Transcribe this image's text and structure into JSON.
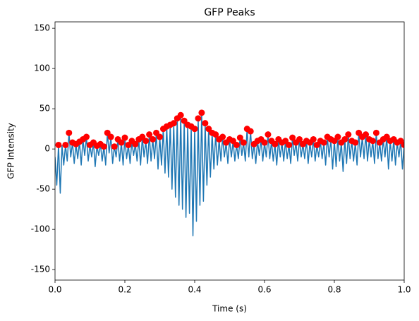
{
  "chart_data": {
    "type": "line",
    "title": "GFP Peaks",
    "x_label": "Time (s)",
    "y_label": "GFP Intensity",
    "xlim": [
      0,
      1
    ],
    "ylim": [
      -163,
      158
    ],
    "xticks": [
      {
        "value": 0,
        "label": "0.0"
      },
      {
        "value": 0.2,
        "label": "0.2"
      },
      {
        "value": 0.4,
        "label": "0.4"
      },
      {
        "value": 0.6,
        "label": "0.6"
      },
      {
        "value": 0.8,
        "label": "0.8"
      },
      {
        "value": 1,
        "label": "1.0"
      }
    ],
    "yticks": [
      -150,
      -100,
      -50,
      0,
      50,
      100,
      150
    ],
    "x": [
      0,
      0.005,
      0.01,
      0.015,
      0.02,
      0.025,
      0.03,
      0.035,
      0.04,
      0.045,
      0.05,
      0.055,
      0.06,
      0.065,
      0.07,
      0.075,
      0.08,
      0.085,
      0.09,
      0.095,
      0.1,
      0.105,
      0.11,
      0.115,
      0.12,
      0.125,
      0.13,
      0.135,
      0.14,
      0.145,
      0.15,
      0.155,
      0.16,
      0.165,
      0.17,
      0.175,
      0.18,
      0.185,
      0.19,
      0.195,
      0.2,
      0.205,
      0.21,
      0.215,
      0.22,
      0.225,
      0.23,
      0.235,
      0.24,
      0.245,
      0.25,
      0.255,
      0.26,
      0.265,
      0.27,
      0.275,
      0.28,
      0.285,
      0.29,
      0.295,
      0.3,
      0.305,
      0.31,
      0.315,
      0.32,
      0.325,
      0.33,
      0.335,
      0.34,
      0.345,
      0.35,
      0.355,
      0.36,
      0.365,
      0.37,
      0.375,
      0.38,
      0.385,
      0.39,
      0.395,
      0.4,
      0.405,
      0.41,
      0.415,
      0.42,
      0.425,
      0.43,
      0.435,
      0.44,
      0.445,
      0.45,
      0.455,
      0.46,
      0.465,
      0.47,
      0.475,
      0.48,
      0.485,
      0.49,
      0.495,
      0.5,
      0.505,
      0.51,
      0.515,
      0.52,
      0.525,
      0.53,
      0.535,
      0.54,
      0.545,
      0.55,
      0.555,
      0.56,
      0.565,
      0.57,
      0.575,
      0.58,
      0.585,
      0.59,
      0.595,
      0.6,
      0.605,
      0.61,
      0.615,
      0.62,
      0.625,
      0.63,
      0.635,
      0.64,
      0.645,
      0.65,
      0.655,
      0.66,
      0.665,
      0.67,
      0.675,
      0.68,
      0.685,
      0.69,
      0.695,
      0.7,
      0.705,
      0.71,
      0.715,
      0.72,
      0.725,
      0.73,
      0.735,
      0.74,
      0.745,
      0.75,
      0.755,
      0.76,
      0.765,
      0.77,
      0.775,
      0.78,
      0.785,
      0.79,
      0.795,
      0.8,
      0.805,
      0.81,
      0.815,
      0.82,
      0.825,
      0.83,
      0.835,
      0.84,
      0.845,
      0.85,
      0.855,
      0.86,
      0.865,
      0.87,
      0.875,
      0.88,
      0.885,
      0.89,
      0.895,
      0.9,
      0.905,
      0.91,
      0.915,
      0.92,
      0.925,
      0.93,
      0.935,
      0.94,
      0.945,
      0.95,
      0.955,
      0.96,
      0.965,
      0.97,
      0.975,
      0.98,
      0.985,
      0.99,
      0.995,
      1
    ],
    "series": [
      {
        "color": "#1f77b4",
        "values": [
          -10,
          -45,
          5,
          -55,
          4,
          -20,
          5,
          -15,
          20,
          -10,
          8,
          -18,
          6,
          -12,
          9,
          -20,
          12,
          -8,
          15,
          -15,
          5,
          -10,
          8,
          -22,
          4,
          -8,
          6,
          -15,
          3,
          -20,
          20,
          -5,
          15,
          -18,
          3,
          -10,
          12,
          -15,
          8,
          -20,
          14,
          -12,
          5,
          -18,
          10,
          -8,
          6,
          -15,
          12,
          -20,
          15,
          -10,
          10,
          -18,
          18,
          -15,
          12,
          -12,
          20,
          -25,
          15,
          -20,
          25,
          -30,
          28,
          -35,
          30,
          -50,
          32,
          -60,
          38,
          -70,
          42,
          -75,
          35,
          -85,
          30,
          -80,
          28,
          -108,
          25,
          -90,
          38,
          -70,
          45,
          -65,
          32,
          -45,
          25,
          -35,
          20,
          -25,
          18,
          -20,
          12,
          -15,
          15,
          -10,
          8,
          -18,
          12,
          -10,
          10,
          -15,
          5,
          -12,
          14,
          -8,
          8,
          -15,
          25,
          -10,
          22,
          -12,
          6,
          -18,
          10,
          -8,
          12,
          -15,
          8,
          -10,
          18,
          -12,
          10,
          -15,
          6,
          -20,
          12,
          -10,
          8,
          -15,
          10,
          -12,
          5,
          -18,
          14,
          -8,
          8,
          -15,
          12,
          -10,
          6,
          -12,
          10,
          -18,
          8,
          -10,
          12,
          -15,
          5,
          -10,
          10,
          -12,
          8,
          -20,
          15,
          -10,
          12,
          -25,
          10,
          -22,
          15,
          -15,
          8,
          -28,
          12,
          -18,
          18,
          -12,
          10,
          -15,
          8,
          -20,
          20,
          -10,
          15,
          -12,
          18,
          -15,
          12,
          -10,
          10,
          -18,
          20,
          -12,
          8,
          -15,
          12,
          -10,
          15,
          -25,
          10,
          -15,
          12,
          -20,
          8,
          -10,
          10,
          -25,
          5
        ]
      },
      {
        "type": "scatter",
        "color": "#ff0000",
        "x": [
          0.01,
          0.03,
          0.04,
          0.05,
          0.06,
          0.07,
          0.08,
          0.09,
          0.1,
          0.11,
          0.12,
          0.13,
          0.14,
          0.15,
          0.16,
          0.17,
          0.18,
          0.19,
          0.2,
          0.21,
          0.22,
          0.23,
          0.24,
          0.25,
          0.26,
          0.27,
          0.28,
          0.29,
          0.3,
          0.31,
          0.32,
          0.33,
          0.34,
          0.35,
          0.36,
          0.37,
          0.38,
          0.39,
          0.4,
          0.41,
          0.42,
          0.43,
          0.44,
          0.45,
          0.46,
          0.47,
          0.48,
          0.49,
          0.5,
          0.51,
          0.52,
          0.53,
          0.54,
          0.55,
          0.56,
          0.57,
          0.58,
          0.59,
          0.6,
          0.61,
          0.62,
          0.63,
          0.64,
          0.65,
          0.66,
          0.67,
          0.68,
          0.69,
          0.7,
          0.71,
          0.72,
          0.73,
          0.74,
          0.75,
          0.76,
          0.77,
          0.78,
          0.79,
          0.8,
          0.81,
          0.82,
          0.83,
          0.84,
          0.85,
          0.86,
          0.87,
          0.88,
          0.89,
          0.9,
          0.91,
          0.92,
          0.93,
          0.94,
          0.95,
          0.96,
          0.97,
          0.98,
          0.99,
          1
        ],
        "values": [
          5,
          5,
          20,
          8,
          6,
          9,
          12,
          15,
          5,
          8,
          4,
          6,
          3,
          20,
          15,
          3,
          12,
          8,
          14,
          5,
          10,
          6,
          12,
          15,
          10,
          18,
          12,
          20,
          15,
          25,
          28,
          30,
          32,
          38,
          42,
          35,
          30,
          28,
          25,
          38,
          45,
          32,
          25,
          20,
          18,
          12,
          15,
          8,
          12,
          10,
          5,
          14,
          8,
          25,
          22,
          6,
          10,
          12,
          8,
          18,
          10,
          6,
          12,
          8,
          10,
          5,
          14,
          8,
          12,
          6,
          10,
          8,
          12,
          5,
          10,
          8,
          15,
          12,
          10,
          15,
          8,
          12,
          18,
          10,
          8,
          20,
          15,
          18,
          12,
          10,
          20,
          8,
          12,
          15,
          10,
          12,
          8,
          10,
          5
        ]
      }
    ]
  }
}
